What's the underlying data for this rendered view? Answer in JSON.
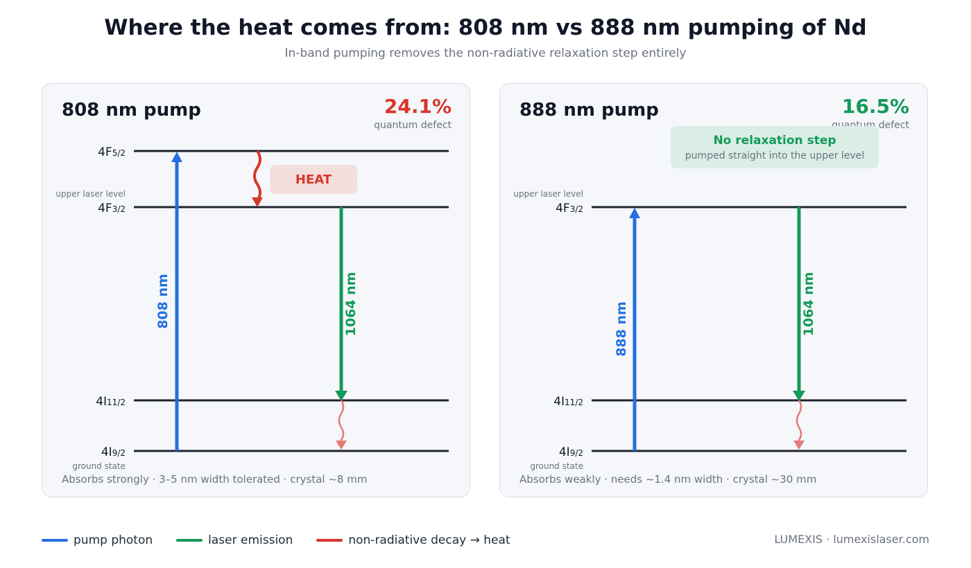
{
  "title": "Where the heat comes from: 808 nm vs 888 nm pumping of Nd",
  "subtitle": "In-band pumping removes the non-radiative relaxation step entirely",
  "colors": {
    "pump": "#2370e0",
    "laser": "#139a5a",
    "heat": "#d9362b",
    "heat_light": "#e57a76",
    "heat_box": "#f3dede",
    "ok_box": "#daeee5"
  },
  "panels": [
    {
      "heading": "808 nm pump",
      "defect_value": "24.1%",
      "defect_color": "#d9362b",
      "defect_label": "quantum defect",
      "levels": {
        "f52_base": "4F",
        "f52_sub": "5/2",
        "f32_base": "4F",
        "f32_sub": "3/2",
        "f32_caption": "upper laser level",
        "i112_base": "4I",
        "i112_sub": "11/2",
        "i92_base": "4I",
        "i92_sub": "9/2",
        "i92_caption": "ground state"
      },
      "pump_label": "808 nm",
      "laser_label": "1064 nm",
      "heat_label": "HEAT",
      "footer": "Absorbs strongly · 3–5 nm width tolerated · crystal ~8 mm"
    },
    {
      "heading": "888 nm pump",
      "defect_value": "16.5%",
      "defect_color": "#139a5a",
      "defect_label": "quantum defect",
      "levels": {
        "f32_base": "4F",
        "f32_sub": "3/2",
        "f32_caption": "upper laser level",
        "i112_base": "4I",
        "i112_sub": "11/2",
        "i92_base": "4I",
        "i92_sub": "9/2",
        "i92_caption": "ground state"
      },
      "pump_label": "888 nm",
      "laser_label": "1064 nm",
      "note_title": "No relaxation step",
      "note_text": "pumped straight into the upper level",
      "footer": "Absorbs weakly · needs ~1.4 nm width · crystal ~30 mm"
    }
  ],
  "legend": {
    "pump": "pump photon",
    "laser": "laser emission",
    "heat": "non-radiative decay → heat"
  },
  "brand": "LUMEXIS · lumexislaser.com"
}
